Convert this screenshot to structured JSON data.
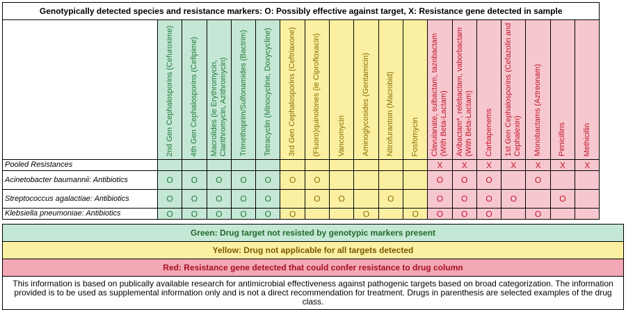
{
  "title": "Genotypically detected species and resistance markers: O: Possibly effective against target, X: Resistance gene detected in sample",
  "columns": [
    {
      "label": "2nd Gen Cephalosporins (Cefuroxime)",
      "color": "g"
    },
    {
      "label": "4th Gen Cephalosporins (Cefipime)",
      "color": "g"
    },
    {
      "label": "Macrolides (ie Erythromycin, Clarithromycin, Azithromycin)",
      "color": "g"
    },
    {
      "label": "Trimethoprim/Sulfonamides (Bactrim)",
      "color": "g"
    },
    {
      "label": "Tetracyclin (Minocycline, Doxycycline)",
      "color": "g"
    },
    {
      "label": "3rd Gen Cephalosporins (Ceftriaxone)",
      "color": "y"
    },
    {
      "label": "(Fluoro)quinolones (ie Ciprofloxacin)",
      "color": "y"
    },
    {
      "label": "Vancomycin",
      "color": "y"
    },
    {
      "label": "Aminoglycosides (Gentamicin)",
      "color": "y"
    },
    {
      "label": "Nitrofurantoin (Macrobid)",
      "color": "y"
    },
    {
      "label": "Fosfomycin",
      "color": "y"
    },
    {
      "label": "Clavulanate, sulbactam, tazobactam (With Beta-Lactam)",
      "color": "r"
    },
    {
      "label": "Avibactam*, relebactam, vaborbactam (With Beta-Lactam)",
      "color": "r"
    },
    {
      "label": "Carbapenems",
      "color": "r"
    },
    {
      "label": "1st Gen Cephalosporins (Cefazolin and Cephalexin)",
      "color": "r"
    },
    {
      "label": "Monobactams (Aztreonam)",
      "color": "r"
    },
    {
      "label": "Penicillins",
      "color": "r"
    },
    {
      "label": "Methicillin",
      "color": "r"
    }
  ],
  "rows": [
    {
      "label": "Pooled Resistances",
      "cells": [
        "",
        "",
        "",
        "",
        "",
        "",
        "",
        "",
        "",
        "",
        "",
        "X",
        "X",
        "X",
        "X",
        "X",
        "X",
        "X"
      ]
    },
    {
      "label": "Acinetobacter baumannii: Antibiotics",
      "cells": [
        "O",
        "O",
        "O",
        "O",
        "O",
        "O",
        "O",
        "",
        "",
        "",
        "",
        "O",
        "O",
        "O",
        "",
        "O",
        "",
        ""
      ]
    },
    {
      "label": "Streptococcus agalactiae: Antibiotics",
      "cells": [
        "O",
        "O",
        "O",
        "O",
        "O",
        "",
        "O",
        "O",
        "",
        "O",
        "",
        "O",
        "O",
        "O",
        "O",
        "",
        "O",
        ""
      ]
    },
    {
      "label": "Klebsiella pneumoniae: Antibiotics",
      "cells": [
        "O",
        "O",
        "O",
        "O",
        "O",
        "O",
        "",
        "",
        "O",
        "",
        "O",
        "O",
        "O",
        "O",
        "",
        "O",
        "",
        ""
      ]
    }
  ],
  "legend": {
    "green": "Green: Drug target not resisted by genotypic markers present",
    "yellow": "Yellow: Drug not applicable for all targets detected",
    "red": "Red: Resistance gene detected that could confer resistance to drug column",
    "note": "This information is based on publically available research for antimicrobial effectiveness against pathogenic targets based on broad categorization. The information provided is to be used as supplemental information only and is not a direct recommendation for treatment. Drugs in parenthesis are selected examples of the drug class."
  }
}
